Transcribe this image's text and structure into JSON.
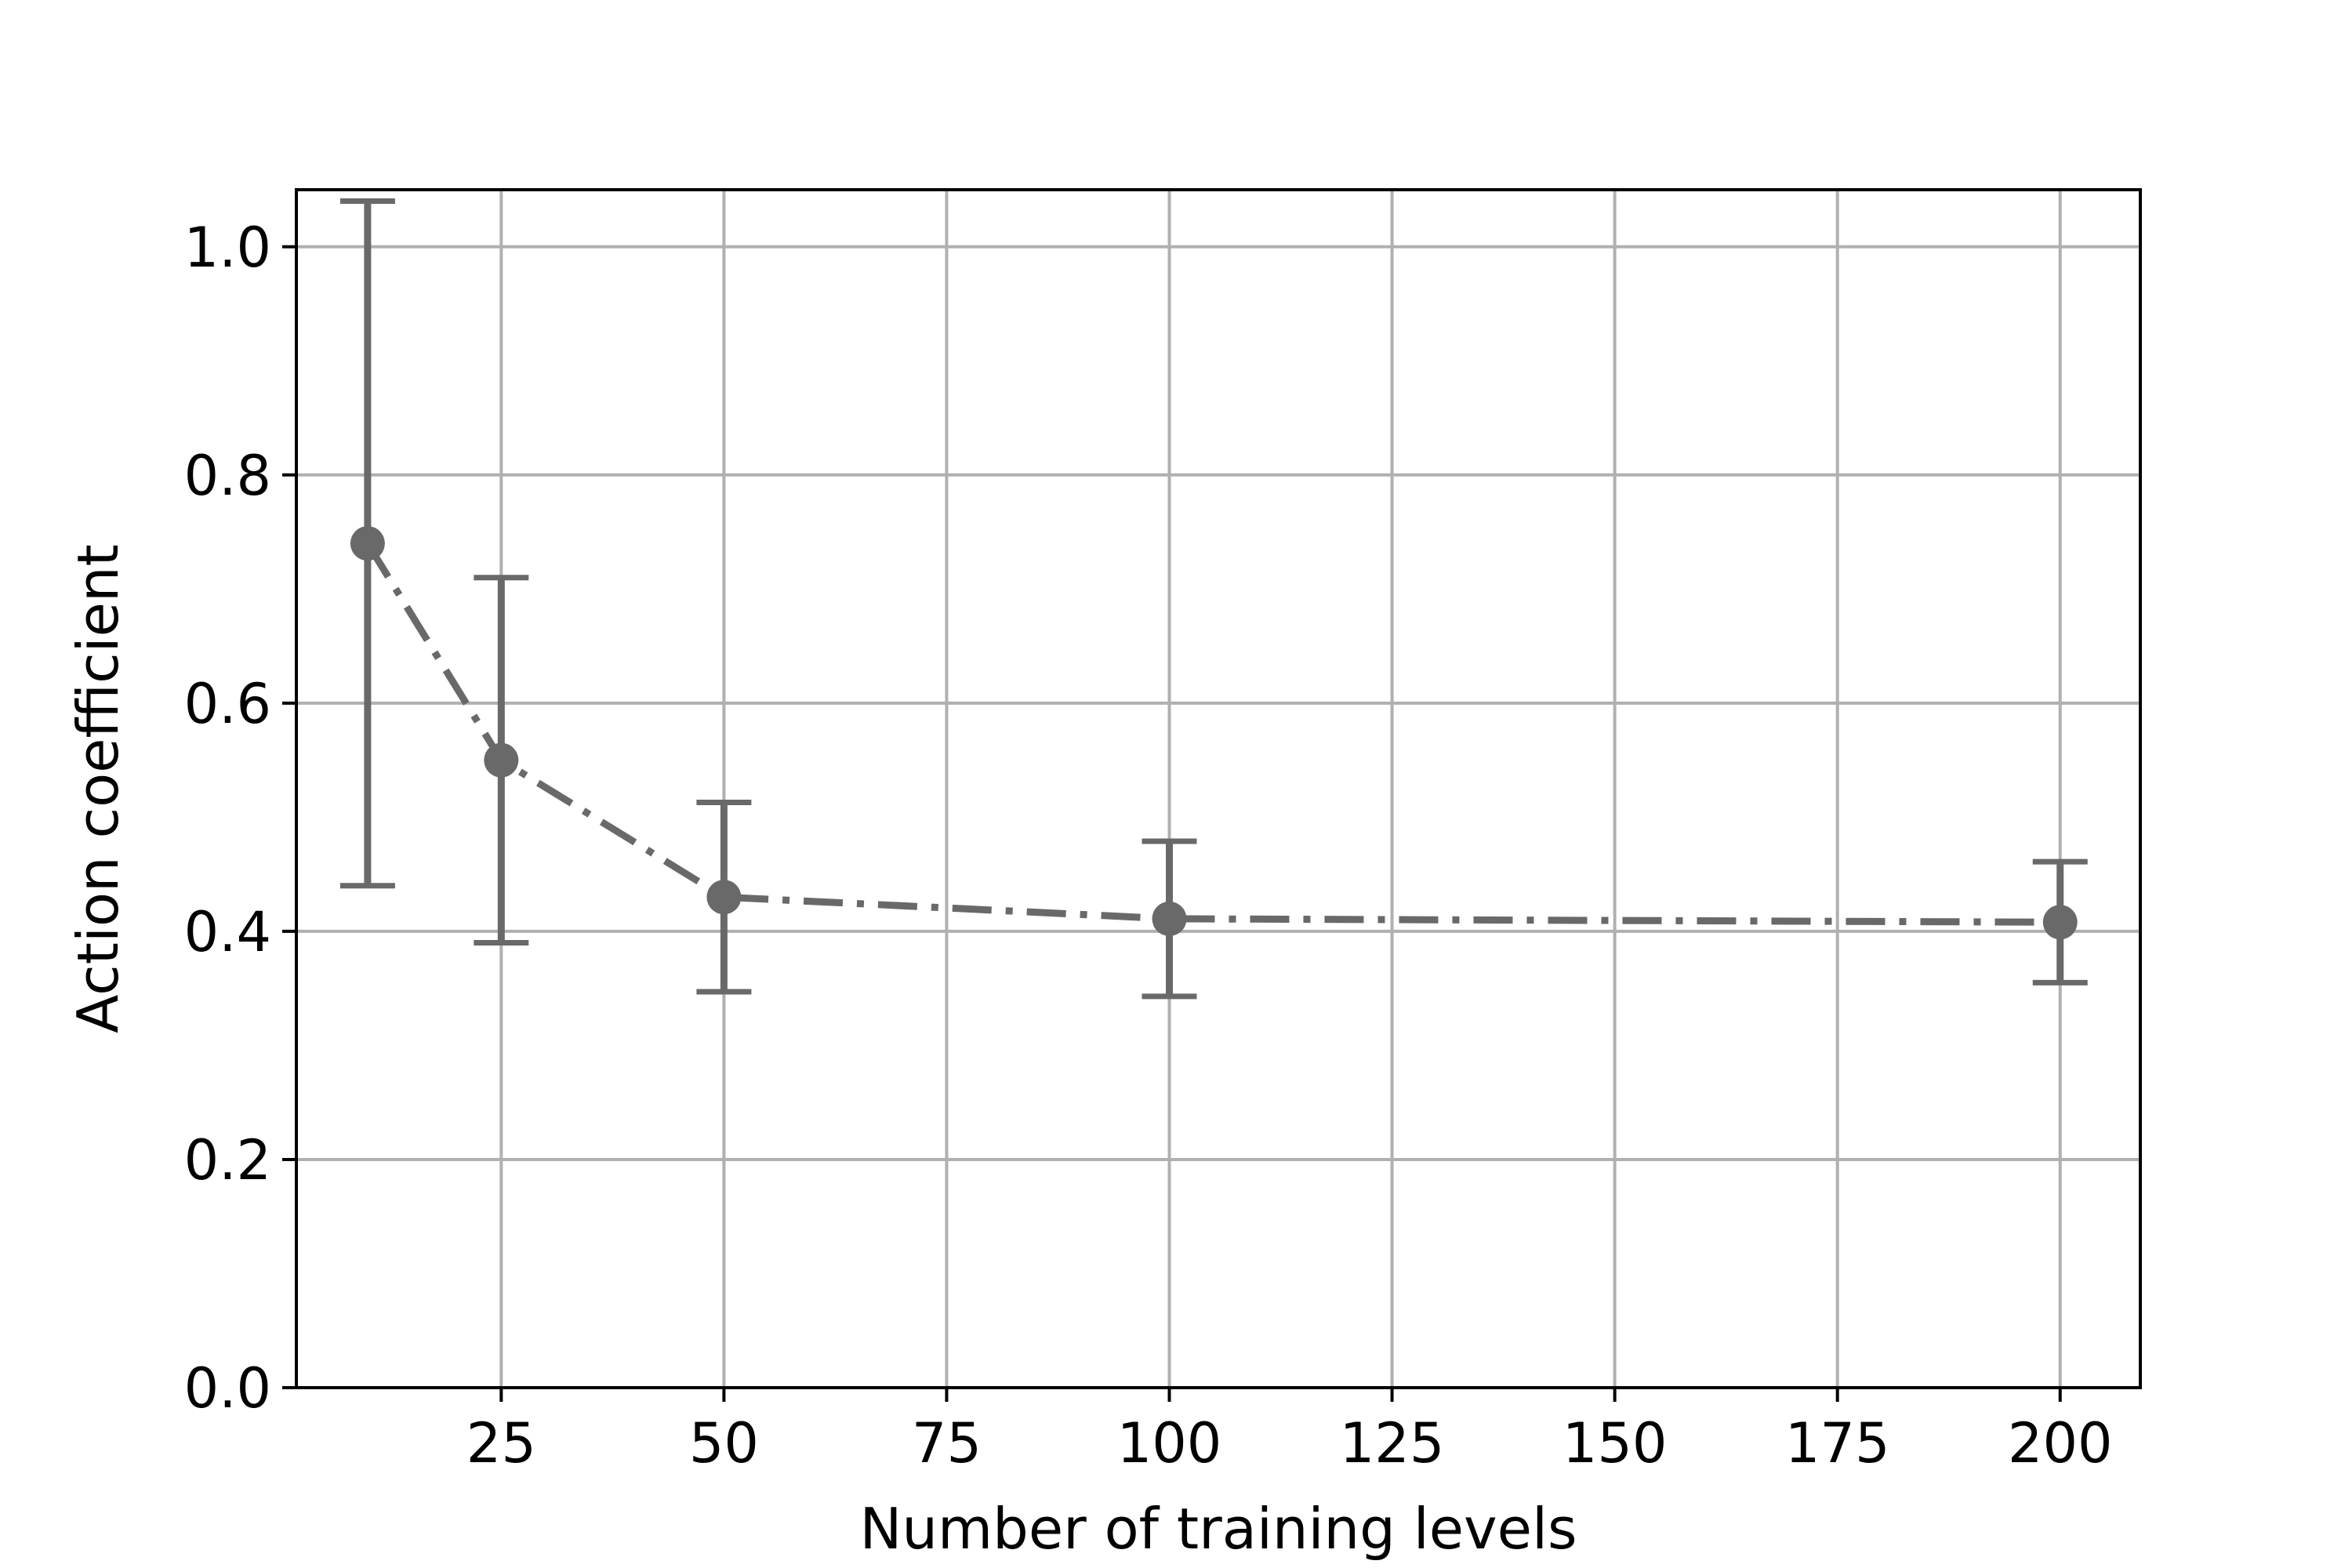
{
  "chart_data": {
    "type": "line",
    "title": "",
    "xlabel": "Number of training levels",
    "ylabel": "Action coefficient",
    "xlim": [
      2,
      209
    ],
    "ylim": [
      0.0,
      1.05
    ],
    "xticks": [
      25,
      50,
      75,
      100,
      125,
      150,
      175,
      200
    ],
    "xtick_labels": [
      "25",
      "50",
      "75",
      "100",
      "125",
      "150",
      "175",
      "200"
    ],
    "yticks": [
      0.0,
      0.2,
      0.4,
      0.6,
      0.8,
      1.0
    ],
    "ytick_labels": [
      "0.0",
      "0.2",
      "0.4",
      "0.6",
      "0.8",
      "1.0"
    ],
    "grid": true,
    "series": [
      {
        "color": "#696969",
        "linestyle": "dashdot",
        "marker": "circle",
        "points": [
          {
            "x": 10,
            "y": 0.74,
            "yerr_low": 0.44,
            "yerr_high": 1.04
          },
          {
            "x": 25,
            "y": 0.55,
            "yerr_low": 0.39,
            "yerr_high": 0.71
          },
          {
            "x": 50,
            "y": 0.43,
            "yerr_low": 0.347,
            "yerr_high": 0.513
          },
          {
            "x": 100,
            "y": 0.411,
            "yerr_low": 0.343,
            "yerr_high": 0.479
          },
          {
            "x": 200,
            "y": 0.408,
            "yerr_low": 0.355,
            "yerr_high": 0.461
          }
        ]
      }
    ]
  }
}
